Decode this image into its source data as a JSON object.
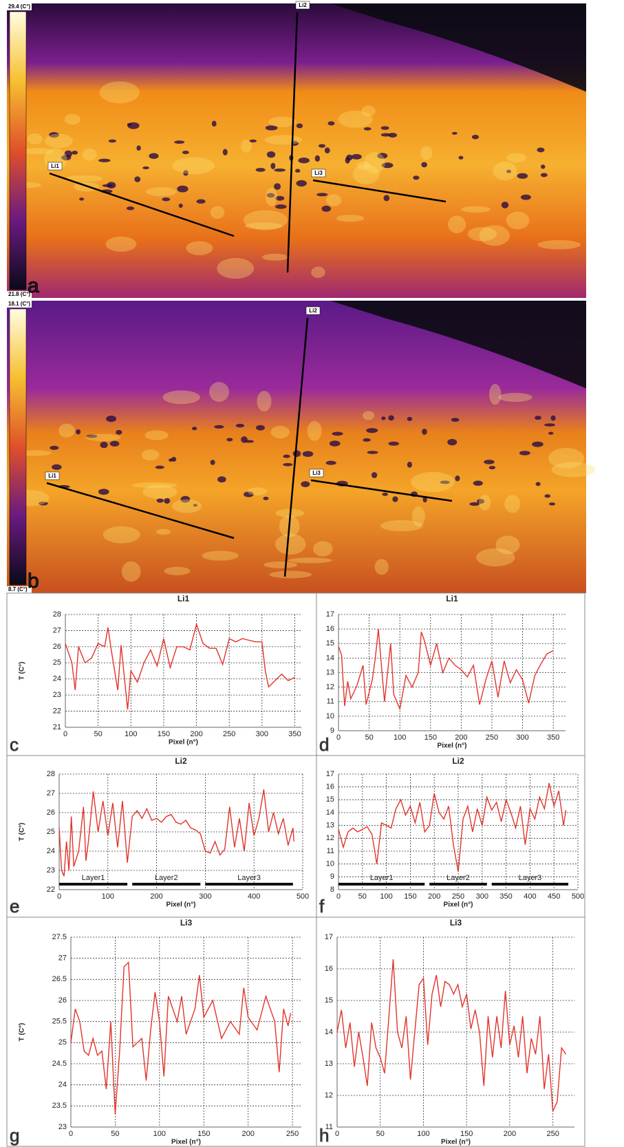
{
  "images": [
    {
      "panel": "a",
      "scale_max": "29.4 (C°)",
      "scale_min": "21.8 (C°)",
      "lines": [
        "Li1",
        "Li2",
        "Li3"
      ]
    },
    {
      "panel": "b",
      "scale_max": "18.1 (C°)",
      "scale_min": "8.7 (C°)",
      "lines": [
        "Li1",
        "Li2",
        "Li3"
      ]
    }
  ],
  "chart_data": [
    {
      "type": "line",
      "panel": "c",
      "title": "Li1",
      "xlabel": "Pixel (n°)",
      "ylabel": "T (C°)",
      "color": "#e2332a",
      "grid": true,
      "x": [
        0,
        10,
        15,
        20,
        30,
        40,
        50,
        60,
        65,
        70,
        80,
        85,
        95,
        100,
        110,
        120,
        130,
        140,
        150,
        160,
        170,
        180,
        190,
        200,
        210,
        220,
        230,
        240,
        250,
        260,
        270,
        280,
        290,
        300,
        305,
        310,
        320,
        330,
        340,
        350
      ],
      "values": [
        26.2,
        25,
        23.3,
        26,
        25,
        25.3,
        26.2,
        26,
        27.2,
        25.8,
        23.3,
        26.1,
        22.1,
        24.5,
        23.8,
        25,
        25.8,
        24.8,
        26.5,
        24.7,
        26,
        26,
        25.8,
        27.4,
        26.2,
        25.9,
        25.9,
        24.9,
        26.5,
        26.3,
        26.5,
        26.4,
        26.3,
        26.3,
        24.5,
        23.5,
        23.9,
        24.3,
        23.9,
        24.1
      ],
      "xlim": [
        0,
        360
      ],
      "xticks": [
        0,
        50,
        100,
        150,
        200,
        250,
        300,
        350
      ],
      "ylim": [
        21,
        28
      ],
      "yticks": [
        21,
        22,
        23,
        24,
        25,
        26,
        27,
        28
      ]
    },
    {
      "type": "line",
      "panel": "d",
      "title": "Li1",
      "xlabel": "Pixel (n°)",
      "color": "#e2332a",
      "grid": true,
      "x": [
        0,
        5,
        10,
        15,
        20,
        30,
        40,
        45,
        55,
        60,
        65,
        70,
        75,
        85,
        90,
        100,
        110,
        120,
        130,
        135,
        140,
        150,
        160,
        170,
        180,
        190,
        200,
        210,
        220,
        230,
        240,
        250,
        260,
        270,
        280,
        290,
        300,
        310,
        320,
        330,
        340,
        350
      ],
      "values": [
        14.8,
        14.2,
        10.7,
        12.4,
        11.2,
        12.1,
        13.5,
        10.8,
        12.5,
        14,
        16,
        13.5,
        11,
        15,
        11.5,
        10.5,
        12.8,
        12,
        13,
        15.8,
        15.2,
        13.5,
        15,
        13,
        14,
        13.5,
        13.2,
        12.7,
        13.5,
        10.8,
        12.5,
        13.8,
        11.3,
        13.8,
        12.3,
        13.2,
        12.5,
        10.9,
        12.8,
        13.6,
        14.3,
        14.5
      ],
      "xlim": [
        0,
        370
      ],
      "xticks": [
        0,
        50,
        100,
        150,
        200,
        250,
        300,
        350
      ],
      "ylim": [
        9,
        17
      ],
      "yticks": [
        9,
        10,
        11,
        12,
        13,
        14,
        15,
        16,
        17
      ]
    },
    {
      "type": "line",
      "panel": "e",
      "title": "Li2",
      "xlabel": "Pixel (n°)",
      "ylabel": "T (C°)",
      "color": "#e2332a",
      "grid": true,
      "x": [
        0,
        5,
        10,
        15,
        20,
        25,
        30,
        40,
        50,
        55,
        60,
        70,
        80,
        90,
        100,
        110,
        120,
        130,
        140,
        150,
        160,
        170,
        180,
        190,
        200,
        210,
        220,
        230,
        240,
        250,
        260,
        270,
        280,
        290,
        300,
        310,
        320,
        330,
        340,
        350,
        360,
        370,
        380,
        390,
        400,
        410,
        420,
        430,
        440,
        450,
        460,
        470,
        480,
        482
      ],
      "values": [
        25.2,
        23,
        22.7,
        24.5,
        23,
        25.8,
        23.2,
        24,
        26.3,
        23.5,
        24.5,
        27.1,
        25,
        26.6,
        24.8,
        26.5,
        24.2,
        26.6,
        23.4,
        25.8,
        26.1,
        25.7,
        26.2,
        25.6,
        25.7,
        25.5,
        25.8,
        25.9,
        25.5,
        25.4,
        25.6,
        25.2,
        25.1,
        24.9,
        24,
        23.9,
        24.5,
        23.8,
        24.1,
        26.3,
        24.2,
        25.7,
        24,
        26.5,
        24.8,
        25.7,
        27.2,
        25,
        26,
        24.9,
        25.7,
        24.3,
        25.2,
        24.5
      ],
      "xlim": [
        0,
        500
      ],
      "xticks": [
        0,
        100,
        200,
        300,
        400,
        500
      ],
      "ylim": [
        22,
        28
      ],
      "yticks": [
        22,
        23,
        24,
        25,
        26,
        27,
        28
      ],
      "annotations": [
        {
          "text": "Layer1",
          "start": 0,
          "end": 140
        },
        {
          "text": "Layer2",
          "start": 150,
          "end": 290
        },
        {
          "text": "Layer3",
          "start": 300,
          "end": 480
        }
      ]
    },
    {
      "type": "line",
      "panel": "f",
      "title": "Li2",
      "xlabel": "Pixel (n°)",
      "color": "#e2332a",
      "grid": true,
      "x": [
        0,
        10,
        20,
        30,
        40,
        50,
        60,
        70,
        80,
        90,
        100,
        110,
        120,
        130,
        140,
        150,
        160,
        170,
        180,
        190,
        200,
        210,
        220,
        230,
        240,
        250,
        260,
        270,
        280,
        290,
        300,
        310,
        320,
        330,
        340,
        350,
        360,
        370,
        380,
        390,
        400,
        410,
        420,
        430,
        440,
        450,
        460,
        470,
        475
      ],
      "values": [
        12.7,
        11.3,
        12.5,
        12.8,
        12.5,
        12.7,
        12.9,
        12.3,
        10,
        13.2,
        13,
        12.8,
        14.3,
        15,
        13.8,
        14.5,
        13.2,
        14.8,
        12.5,
        13,
        15.5,
        14,
        13.5,
        14.5,
        11.5,
        9.4,
        13.5,
        14.5,
        12.5,
        14.3,
        13,
        15.2,
        14.2,
        14.8,
        13.3,
        15,
        14,
        12.8,
        14.5,
        11.5,
        14.3,
        13.5,
        15.2,
        14.3,
        16.3,
        14.5,
        15.7,
        13,
        14.2
      ],
      "xlim": [
        0,
        500
      ],
      "xticks": [
        0,
        50,
        100,
        150,
        200,
        250,
        300,
        350,
        400,
        450,
        500
      ],
      "ylim": [
        8,
        17
      ],
      "yticks": [
        8,
        9,
        10,
        11,
        12,
        13,
        14,
        15,
        16,
        17
      ],
      "annotations": [
        {
          "text": "Layer1",
          "start": 0,
          "end": 180
        },
        {
          "text": "Layer2",
          "start": 190,
          "end": 310
        },
        {
          "text": "Layer3",
          "start": 320,
          "end": 480
        }
      ]
    },
    {
      "type": "line",
      "panel": "g",
      "title": "Li3",
      "xlabel": "Pixel (n°)",
      "ylabel": "T (C°)",
      "color": "#e2332a",
      "grid": true,
      "x": [
        0,
        5,
        10,
        15,
        20,
        25,
        30,
        35,
        40,
        45,
        50,
        55,
        60,
        65,
        70,
        80,
        85,
        90,
        95,
        100,
        105,
        110,
        120,
        125,
        130,
        140,
        145,
        150,
        160,
        170,
        180,
        190,
        195,
        200,
        210,
        220,
        230,
        235,
        240,
        245,
        248
      ],
      "values": [
        25,
        25.8,
        25.5,
        24.8,
        24.7,
        25.1,
        24.7,
        24.8,
        23.9,
        25.5,
        23.3,
        24.8,
        26.8,
        26.9,
        24.9,
        25.1,
        24.1,
        25.3,
        26.2,
        25.5,
        24.2,
        26.1,
        25.5,
        26.1,
        25.2,
        25.8,
        26.6,
        25.6,
        26,
        25.1,
        25.5,
        25.2,
        26.3,
        25.6,
        25.3,
        26.1,
        25.5,
        24.3,
        25.8,
        25.4,
        25.7
      ],
      "xlim": [
        0,
        260
      ],
      "xticks": [
        0,
        50,
        100,
        150,
        200,
        250
      ],
      "ylim": [
        23,
        27.5
      ],
      "yticks": [
        23,
        23.5,
        24,
        24.5,
        25,
        25.5,
        26,
        26.5,
        27,
        27.5
      ]
    },
    {
      "type": "line",
      "panel": "h",
      "title": "Li3",
      "xlabel": "Pixel (n°)",
      "color": "#e2332a",
      "grid": true,
      "x": [
        0,
        5,
        10,
        15,
        20,
        25,
        30,
        35,
        40,
        45,
        50,
        55,
        60,
        65,
        70,
        75,
        80,
        85,
        90,
        95,
        100,
        105,
        110,
        115,
        120,
        125,
        130,
        135,
        140,
        145,
        150,
        155,
        160,
        165,
        170,
        175,
        180,
        185,
        190,
        195,
        200,
        205,
        210,
        215,
        220,
        225,
        230,
        235,
        240,
        245,
        250,
        255,
        260,
        265
      ],
      "values": [
        14,
        14.7,
        13.5,
        14.3,
        12.9,
        14,
        13.2,
        12.3,
        14.3,
        13.5,
        13.2,
        12.7,
        14.5,
        16.3,
        14,
        13.5,
        14.5,
        12.5,
        14,
        15.5,
        15.7,
        13.6,
        15.2,
        15.8,
        14.8,
        15.6,
        15.5,
        15.2,
        15.5,
        14.8,
        15.2,
        14.1,
        14.7,
        14,
        12.3,
        14.5,
        13.2,
        14.5,
        13.5,
        15.3,
        13.6,
        14.2,
        13.2,
        14.5,
        12.7,
        13.8,
        13.3,
        14.5,
        12.2,
        13.3,
        11.5,
        11.8,
        13.5,
        13.3
      ],
      "xlim": [
        0,
        275
      ],
      "xticks": [
        0,
        50,
        100,
        150,
        200,
        250
      ],
      "ylim": [
        11,
        17
      ],
      "yticks": [
        11,
        12,
        13,
        14,
        15,
        16,
        17
      ]
    }
  ]
}
